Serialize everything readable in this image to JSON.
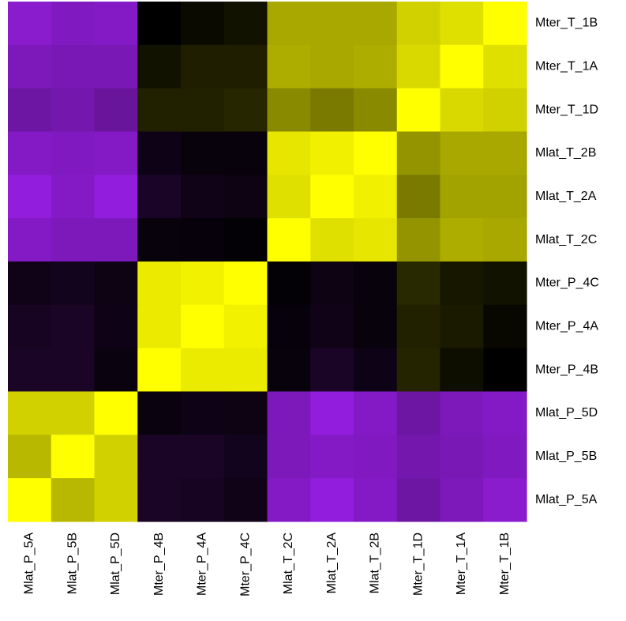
{
  "chart_data": {
    "type": "heatmap",
    "title": "",
    "xlabel": "",
    "ylabel": "",
    "row_labels": [
      "Mter_T_1B",
      "Mter_T_1A",
      "Mter_T_1D",
      "Mlat_T_2B",
      "Mlat_T_2A",
      "Mlat_T_2C",
      "Mter_P_4C",
      "Mter_P_4A",
      "Mter_P_4B",
      "Mlat_P_5D",
      "Mlat_P_5B",
      "Mlat_P_5A"
    ],
    "col_labels": [
      "Mlat_P_5A",
      "Mlat_P_5B",
      "Mlat_P_5D",
      "Mter_P_4B",
      "Mter_P_4A",
      "Mter_P_4C",
      "Mlat_T_2C",
      "Mlat_T_2A",
      "Mlat_T_2B",
      "Mter_T_1D",
      "Mter_T_1A",
      "Mter_T_1B"
    ],
    "colormap": {
      "low": "#000000",
      "mid_negative": "#a020f0",
      "high": "#ffff00"
    },
    "value_scale": [
      -1,
      1
    ],
    "values": [
      [
        -0.86,
        -0.8,
        -0.82,
        0.0,
        0.04,
        0.07,
        0.66,
        0.66,
        0.66,
        0.82,
        0.88,
        1.0
      ],
      [
        -0.78,
        -0.76,
        -0.76,
        0.07,
        0.12,
        0.12,
        0.68,
        0.66,
        0.68,
        0.85,
        1.0,
        0.88
      ],
      [
        -0.68,
        -0.72,
        -0.65,
        0.13,
        0.13,
        0.15,
        0.54,
        0.48,
        0.54,
        1.0,
        0.85,
        0.82
      ],
      [
        -0.82,
        -0.8,
        -0.82,
        -0.09,
        -0.05,
        -0.05,
        0.9,
        0.94,
        1.0,
        0.58,
        0.66,
        0.66
      ],
      [
        -0.92,
        -0.82,
        -0.92,
        -0.16,
        -0.1,
        -0.08,
        0.88,
        1.0,
        0.94,
        0.48,
        0.64,
        0.64
      ],
      [
        -0.82,
        -0.78,
        -0.78,
        -0.05,
        -0.04,
        -0.02,
        1.0,
        0.88,
        0.9,
        0.58,
        0.68,
        0.66
      ],
      [
        -0.1,
        -0.12,
        -0.08,
        0.92,
        0.95,
        1.0,
        -0.02,
        -0.08,
        -0.05,
        0.16,
        0.09,
        0.07
      ],
      [
        -0.14,
        -0.16,
        -0.09,
        0.92,
        1.0,
        0.95,
        -0.04,
        -0.1,
        -0.05,
        0.13,
        0.1,
        0.03
      ],
      [
        -0.16,
        -0.16,
        -0.06,
        1.0,
        0.92,
        0.92,
        -0.05,
        -0.16,
        -0.09,
        0.14,
        0.05,
        0.0
      ],
      [
        0.82,
        0.82,
        1.0,
        -0.06,
        -0.09,
        -0.08,
        -0.78,
        -0.92,
        -0.82,
        -0.68,
        -0.78,
        -0.82
      ],
      [
        0.72,
        1.0,
        0.82,
        -0.16,
        -0.16,
        -0.12,
        -0.78,
        -0.82,
        -0.8,
        -0.72,
        -0.76,
        -0.8
      ],
      [
        1.0,
        0.72,
        0.82,
        -0.16,
        -0.14,
        -0.1,
        -0.82,
        -0.92,
        -0.82,
        -0.68,
        -0.78,
        -0.86
      ]
    ]
  }
}
